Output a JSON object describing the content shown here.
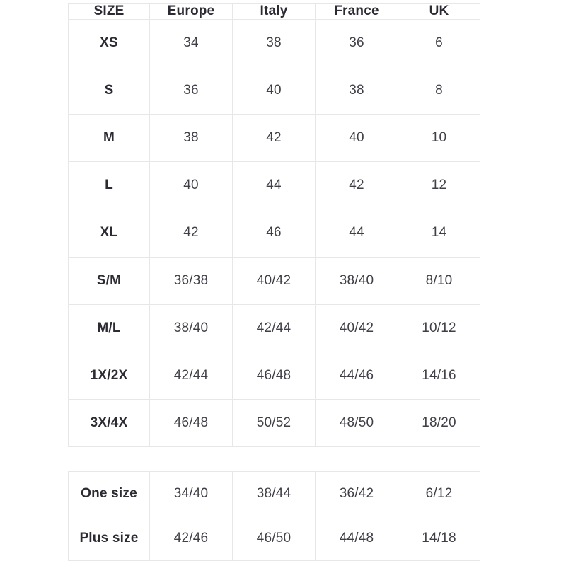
{
  "colors": {
    "background": "#ffffff",
    "border": "#e7e7e9",
    "header_text": "#2c2b33",
    "cell_text": "#403f47"
  },
  "size_chart": {
    "columns": [
      "SIZE",
      "Europe",
      "Italy",
      "France",
      "UK"
    ],
    "rows": [
      [
        "XS",
        "34",
        "38",
        "36",
        "6"
      ],
      [
        "S",
        "36",
        "40",
        "38",
        "8"
      ],
      [
        "M",
        "38",
        "42",
        "40",
        "10"
      ],
      [
        "L",
        "40",
        "44",
        "42",
        "12"
      ],
      [
        "XL",
        "42",
        "46",
        "44",
        "14"
      ],
      [
        "S/M",
        "36/38",
        "40/42",
        "38/40",
        "8/10"
      ],
      [
        "M/L",
        "38/40",
        "42/44",
        "40/42",
        "10/12"
      ],
      [
        "1X/2X",
        "42/44",
        "46/48",
        "44/46",
        "14/16"
      ],
      [
        "3X/4X",
        "46/48",
        "50/52",
        "48/50",
        "18/20"
      ]
    ]
  },
  "special_sizes": {
    "rows": [
      [
        "One size",
        "34/40",
        "38/44",
        "36/42",
        "6/12"
      ],
      [
        "Plus size",
        "42/46",
        "46/50",
        "44/48",
        "14/18"
      ]
    ]
  }
}
